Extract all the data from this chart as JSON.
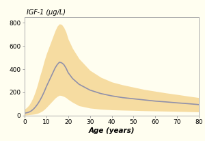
{
  "title": "IGF-1 (μg/L)",
  "xlabel": "Age (years)",
  "xlim": [
    0,
    80
  ],
  "ylim": [
    0,
    850
  ],
  "yticks": [
    0,
    200,
    400,
    600,
    800
  ],
  "xticks": [
    0,
    10,
    20,
    30,
    40,
    50,
    60,
    70,
    80
  ],
  "background_color": "#fffef0",
  "plot_bg_color": "#fffef0",
  "fill_color": "#f0c060",
  "fill_alpha": 0.55,
  "line_color": "#9090aa",
  "line_width": 1.2,
  "border_color": "#aaaaaa",
  "title_fontsize": 7,
  "label_fontsize": 7.5,
  "tick_fontsize": 6.5,
  "age": [
    0,
    1,
    2,
    3,
    4,
    5,
    6,
    7,
    8,
    9,
    10,
    11,
    12,
    13,
    14,
    15,
    16,
    17,
    18,
    19,
    20,
    22,
    25,
    30,
    35,
    40,
    45,
    50,
    55,
    60,
    65,
    70,
    75,
    80
  ],
  "mean": [
    20,
    25,
    30,
    40,
    55,
    75,
    100,
    130,
    165,
    205,
    250,
    290,
    330,
    370,
    410,
    440,
    460,
    455,
    440,
    410,
    370,
    320,
    270,
    220,
    190,
    170,
    155,
    145,
    135,
    125,
    118,
    110,
    103,
    95
  ],
  "upper": [
    55,
    70,
    90,
    120,
    160,
    210,
    270,
    340,
    400,
    470,
    530,
    580,
    630,
    680,
    730,
    770,
    790,
    785,
    760,
    720,
    660,
    580,
    490,
    390,
    330,
    290,
    265,
    245,
    225,
    210,
    195,
    182,
    168,
    155
  ],
  "lower": [
    5,
    6,
    8,
    10,
    12,
    15,
    20,
    28,
    38,
    52,
    70,
    90,
    110,
    130,
    150,
    165,
    175,
    172,
    165,
    155,
    140,
    115,
    85,
    65,
    55,
    50,
    47,
    45,
    42,
    40,
    38,
    36,
    34,
    32
  ]
}
